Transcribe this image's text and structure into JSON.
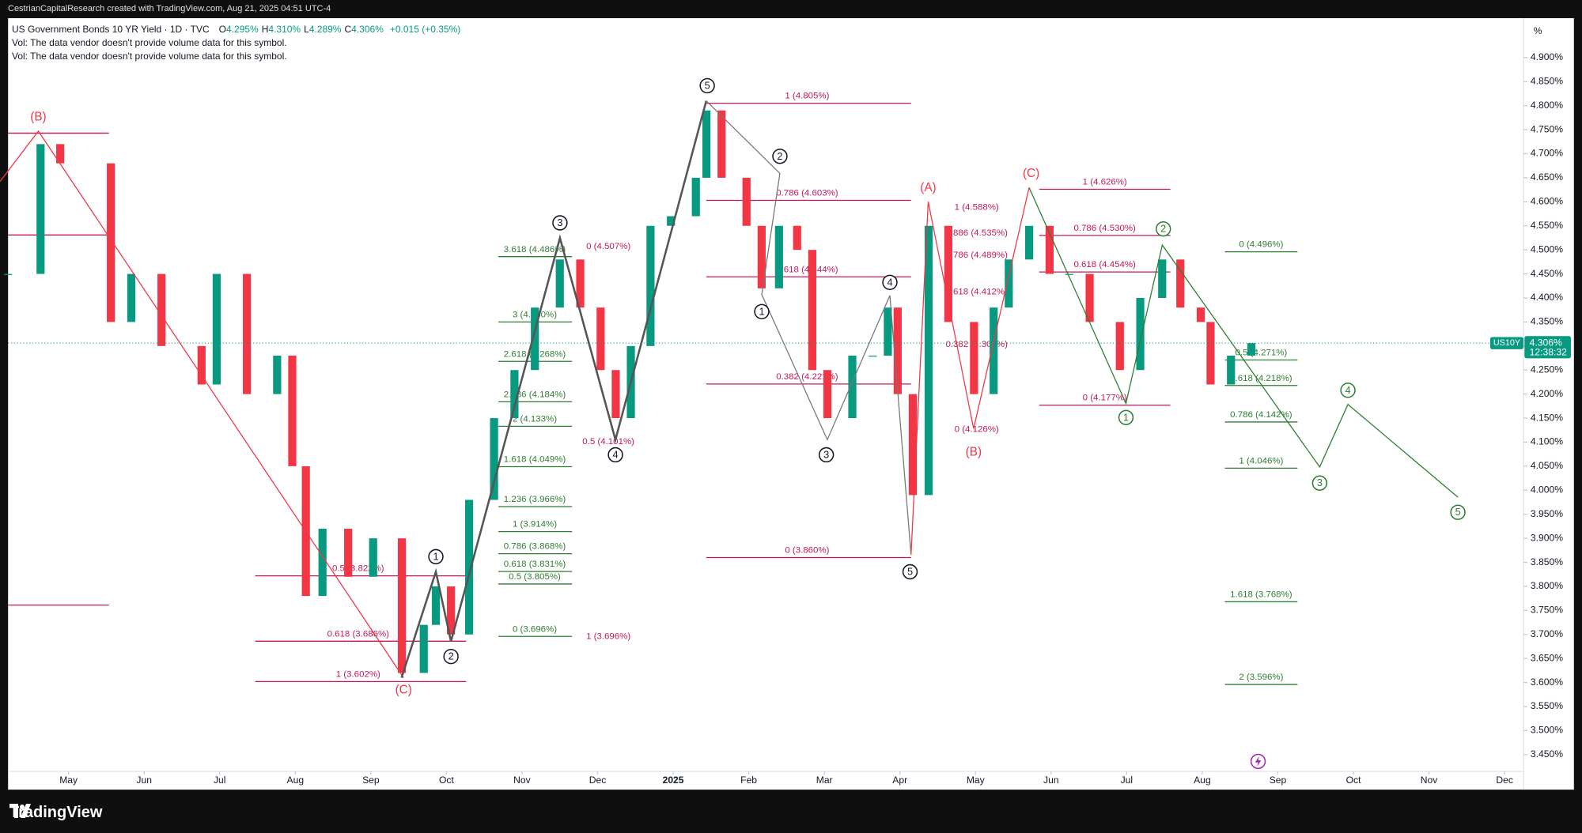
{
  "header": {
    "credit": "CestrianCapitalResearch created with TradingView.com, Aug 21, 2025 04:51 UTC-4",
    "symbol": "US Government Bonds 10 YR Yield · 1D · TVC",
    "ohlc": [
      {
        "key": "O",
        "value": "4.295%"
      },
      {
        "key": "H",
        "value": "4.310%"
      },
      {
        "key": "L",
        "value": "4.289%"
      },
      {
        "key": "C",
        "value": "4.306%"
      }
    ],
    "change": "+0.015 (+0.35%)",
    "volume_notes": [
      "Vol: The data vendor doesn't provide volume data for this symbol.",
      "Vol: The data vendor doesn't provide volume data for this symbol."
    ]
  },
  "chart_data": {
    "type": "candlestick",
    "y_unit": "%",
    "x": [
      3.2,
      3.63,
      3.89,
      4.56,
      4.83,
      5.23,
      5.76,
      5.96,
      6.36,
      6.76,
      6.96,
      7.14,
      7.36,
      7.7,
      8.03,
      8.41,
      8.7,
      8.86,
      9.06,
      9.3,
      9.63,
      9.9,
      10.17,
      10.5,
      10.77,
      11.04,
      11.24,
      11.44,
      11.7,
      11.97,
      12.3,
      12.44,
      12.64,
      12.97,
      13.17,
      13.4,
      13.64,
      13.84,
      14.04,
      14.37,
      14.64,
      14.84,
      14.97,
      15.17,
      15.38,
      15.64,
      15.98,
      16.24,
      16.44,
      16.71,
      16.98,
      17.24,
      17.51,
      17.91,
      18.18,
      18.47,
      18.71,
      18.98,
      19.11,
      19.38,
      19.65
    ],
    "close": [
      4.45,
      4.72,
      4.68,
      4.35,
      4.45,
      4.3,
      4.22,
      4.45,
      4.2,
      4.28,
      4.05,
      3.78,
      3.92,
      3.82,
      3.9,
      3.62,
      3.72,
      3.8,
      3.7,
      3.98,
      4.15,
      4.25,
      4.38,
      4.48,
      4.38,
      4.25,
      4.15,
      4.3,
      4.55,
      4.57,
      4.65,
      4.79,
      4.65,
      4.55,
      4.42,
      4.55,
      4.5,
      4.25,
      4.15,
      4.28,
      4.28,
      4.38,
      4.2,
      3.99,
      4.55,
      4.35,
      4.2,
      4.38,
      4.48,
      4.55,
      4.45,
      4.45,
      4.35,
      4.25,
      4.4,
      4.48,
      4.38,
      4.35,
      4.22,
      4.28,
      4.306
    ],
    "up_color": "#089981",
    "down_color": "#f23645",
    "xlim": [
      3.2,
      23.25
    ],
    "ylim": [
      3.415,
      4.982
    ],
    "xticks": [
      {
        "value": 4,
        "label": "May"
      },
      {
        "value": 5,
        "label": "Jun"
      },
      {
        "value": 6,
        "label": "Jul"
      },
      {
        "value": 7,
        "label": "Aug"
      },
      {
        "value": 8,
        "label": "Sep"
      },
      {
        "value": 9,
        "label": "Oct"
      },
      {
        "value": 10,
        "label": "Nov"
      },
      {
        "value": 11,
        "label": "Dec"
      },
      {
        "value": 12,
        "label": "2025"
      },
      {
        "value": 13,
        "label": "Feb"
      },
      {
        "value": 14,
        "label": "Mar"
      },
      {
        "value": 15,
        "label": "Apr"
      },
      {
        "value": 16,
        "label": "May"
      },
      {
        "value": 17,
        "label": "Jun"
      },
      {
        "value": 18,
        "label": "Jul"
      },
      {
        "value": 19,
        "label": "Aug"
      },
      {
        "value": 20,
        "label": "Sep"
      },
      {
        "value": 21,
        "label": "Oct"
      },
      {
        "value": 22,
        "label": "Nov"
      },
      {
        "value": 23,
        "label": "Dec"
      }
    ],
    "yticks": [
      {
        "value": 3.45,
        "label": "3.450%"
      },
      {
        "value": 3.5,
        "label": "3.500%"
      },
      {
        "value": 3.55,
        "label": "3.550%"
      },
      {
        "value": 3.6,
        "label": "3.600%"
      },
      {
        "value": 3.65,
        "label": "3.650%"
      },
      {
        "value": 3.7,
        "label": "3.700%"
      },
      {
        "value": 3.75,
        "label": "3.750%"
      },
      {
        "value": 3.8,
        "label": "3.800%"
      },
      {
        "value": 3.85,
        "label": "3.850%"
      },
      {
        "value": 3.9,
        "label": "3.900%"
      },
      {
        "value": 3.95,
        "label": "3.950%"
      },
      {
        "value": 4.0,
        "label": "4.000%"
      },
      {
        "value": 4.05,
        "label": "4.050%"
      },
      {
        "value": 4.1,
        "label": "4.100%"
      },
      {
        "value": 4.15,
        "label": "4.150%"
      },
      {
        "value": 4.2,
        "label": "4.200%"
      },
      {
        "value": 4.25,
        "label": "4.250%"
      },
      {
        "value": 4.3,
        "label": "4.300%"
      },
      {
        "value": 4.35,
        "label": "4.350%"
      },
      {
        "value": 4.4,
        "label": "4.400%"
      },
      {
        "value": 4.45,
        "label": "4.450%"
      },
      {
        "value": 4.5,
        "label": "4.500%"
      },
      {
        "value": 4.55,
        "label": "4.550%"
      },
      {
        "value": 4.6,
        "label": "4.600%"
      },
      {
        "value": 4.65,
        "label": "4.650%"
      },
      {
        "value": 4.7,
        "label": "4.700%"
      },
      {
        "value": 4.75,
        "label": "4.750%"
      },
      {
        "value": 4.8,
        "label": "4.800%"
      },
      {
        "value": 4.85,
        "label": "4.850%"
      },
      {
        "value": 4.9,
        "label": "4.900%"
      }
    ],
    "last": {
      "symbol": "US10Y",
      "price": "4.306%",
      "countdown": "12:38:32",
      "value": 4.306,
      "color": "#089981"
    },
    "fibs": [
      {
        "color": "#c2185b",
        "levels": [
          {
            "level": 4.805,
            "label": "1 (4.805%)"
          },
          {
            "level": 4.603,
            "label": "0.786 (4.603%)"
          },
          {
            "level": 4.444,
            "label": "0.618 (4.444%)"
          },
          {
            "level": 4.221,
            "label": "0.382 (4.221%)"
          },
          {
            "level": 3.86,
            "label": "0 (3.860%)"
          }
        ]
      },
      {
        "color": "#c2185b",
        "levels": [
          {
            "level": 3.822,
            "label": "0.5 (3.822%)"
          },
          {
            "level": 3.686,
            "label": "0.618 (3.686%)"
          },
          {
            "level": 3.602,
            "label": "1 (3.602%)"
          }
        ]
      },
      {
        "color": "#2e7d32",
        "levels": [
          {
            "level": 4.486,
            "label": "3.618 (4.486%)"
          },
          {
            "level": 4.35,
            "label": "3 (4.350%)"
          },
          {
            "level": 4.268,
            "label": "2.618 (4.268%)"
          },
          {
            "level": 4.184,
            "label": "2.236 (4.184%)"
          },
          {
            "level": 4.133,
            "label": "2 (4.133%)"
          },
          {
            "level": 4.049,
            "label": "1.618 (4.049%)"
          },
          {
            "level": 3.966,
            "label": "1.236 (3.966%)"
          },
          {
            "level": 3.914,
            "label": "1 (3.914%)"
          },
          {
            "level": 3.868,
            "label": "0.786 (3.868%)"
          },
          {
            "level": 3.831,
            "label": "0.618 (3.831%)"
          },
          {
            "level": 3.805,
            "label": "0.5 (3.805%)"
          },
          {
            "level": 3.696,
            "label": "0 (3.696%)"
          }
        ]
      },
      {
        "color": "#c2185b",
        "levels": [
          {
            "level": 4.626,
            "label": "1 (4.626%)"
          },
          {
            "level": 4.53,
            "label": "0.786 (4.530%)"
          },
          {
            "level": 4.454,
            "label": "0.618 (4.454%)"
          },
          {
            "level": 4.177,
            "label": "0 (4.177%)"
          }
        ]
      },
      {
        "color": "#2e7d32",
        "levels": [
          {
            "level": 4.496,
            "label": "0 (4.496%)"
          },
          {
            "level": 4.271,
            "label": "0.5 (4.271%)"
          },
          {
            "level": 4.218,
            "label": "0.618 (4.218%)"
          },
          {
            "level": 4.142,
            "label": "0.786 (4.142%)"
          },
          {
            "level": 4.046,
            "label": "1 (4.046%)"
          },
          {
            "level": 3.768,
            "label": "1.618 (3.768%)"
          },
          {
            "level": 3.596,
            "label": "2 (3.596%)"
          }
        ]
      },
      {
        "color": "#c2185b",
        "levels": [
          {
            "level": 4.588,
            "label": "1 (4.588%)"
          },
          {
            "level": 4.535,
            "label": "0.886 (4.535%)"
          },
          {
            "level": 4.489,
            "label": "0.786 (4.489%)"
          },
          {
            "level": 4.412,
            "label": "0.618 (4.412%)"
          },
          {
            "level": 4.303,
            "label": "0.382 (4.303%)"
          },
          {
            "level": 4.126,
            "label": "0 (4.126%)"
          }
        ]
      },
      {
        "color": "#c2185b",
        "levels": [
          {
            "level": 4.507,
            "label": "0 (4.507%)"
          },
          {
            "level": 4.101,
            "label": "0.5 (4.101%)"
          },
          {
            "level": 3.696,
            "label": "1 (3.696%)"
          }
        ]
      }
    ],
    "waves": [
      {
        "label": "5",
        "color": "#131722",
        "circled": true
      },
      {
        "label": "2",
        "color": "#131722",
        "circled": true
      },
      {
        "label": "3",
        "color": "#131722",
        "circled": true
      },
      {
        "label": "1",
        "color": "#131722",
        "circled": true
      },
      {
        "label": "4",
        "color": "#131722",
        "circled": true
      },
      {
        "label": "3",
        "color": "#131722",
        "circled": true
      },
      {
        "label": "5",
        "color": "#131722",
        "circled": true
      },
      {
        "label": "1",
        "color": "#131722",
        "circled": true
      },
      {
        "label": "2",
        "color": "#131722",
        "circled": true
      },
      {
        "label": "4",
        "color": "#131722",
        "circled": true
      },
      {
        "label": "(B)",
        "color": "#f23645",
        "circled": false
      },
      {
        "label": "(C)",
        "color": "#f23645",
        "circled": false
      },
      {
        "label": "(A)",
        "color": "#f23645",
        "circled": false
      },
      {
        "label": "(B)",
        "color": "#f23645",
        "circled": false
      },
      {
        "label": "(C)",
        "color": "#f23645",
        "circled": false
      },
      {
        "label": "2",
        "color": "#2e7d32",
        "circled": true
      },
      {
        "label": "1",
        "color": "#2e7d32",
        "circled": true
      },
      {
        "label": "4",
        "color": "#2e7d32",
        "circled": true
      },
      {
        "label": "3",
        "color": "#2e7d32",
        "circled": true
      },
      {
        "label": "5",
        "color": "#2e7d32",
        "circled": true
      }
    ]
  },
  "footer": {
    "logo": "TradingView"
  }
}
